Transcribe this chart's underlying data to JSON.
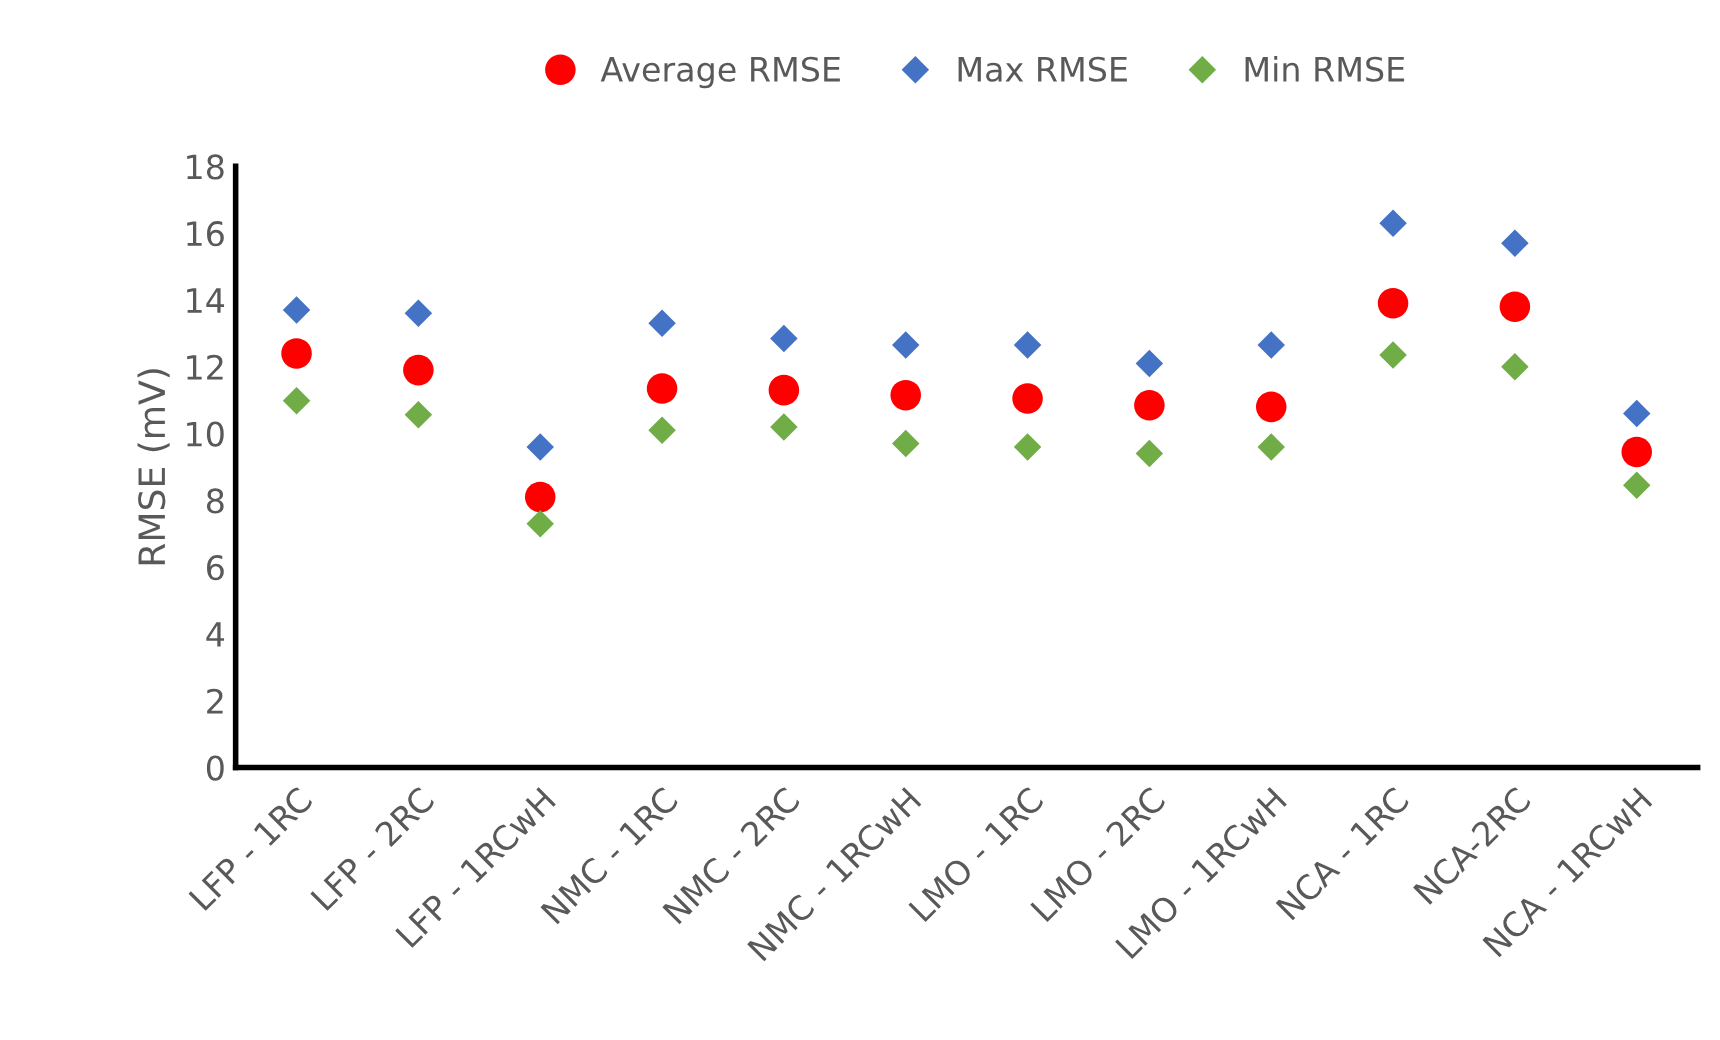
{
  "chart_data": {
    "type": "scatter",
    "ylabel": "RMSE (mV)",
    "categories": [
      "LFP - 1RC",
      "LFP - 2RC",
      "LFP - 1RCwH",
      "NMC - 1RC",
      "NMC - 2RC",
      "NMC - 1RCwH",
      "LMO - 1RC",
      "LMO - 2RC",
      "LMO - 1RCwH",
      "NCA - 1RC",
      "NCA-2RC",
      "NCA - 1RCwH"
    ],
    "series": [
      {
        "name": "Average RMSE",
        "color": "#ff0000",
        "marker": "circle",
        "values": [
          12.4,
          11.9,
          8.1,
          11.35,
          11.3,
          11.15,
          11.05,
          10.85,
          10.8,
          13.9,
          13.8,
          9.45
        ]
      },
      {
        "name": "Max RMSE",
        "color": "#4472c4",
        "marker": "diamond",
        "values": [
          13.7,
          13.6,
          9.6,
          13.3,
          12.85,
          12.65,
          12.65,
          12.1,
          12.65,
          16.3,
          15.7,
          10.6
        ]
      },
      {
        "name": "Min RMSE",
        "color": "#70ad47",
        "marker": "diamond",
        "values": [
          10.98,
          10.56,
          7.3,
          10.1,
          10.2,
          9.7,
          9.6,
          9.4,
          9.6,
          12.35,
          12.0,
          8.45
        ]
      }
    ],
    "ylim": [
      0,
      18
    ],
    "yticks": [
      0,
      2,
      4,
      6,
      8,
      10,
      12,
      14,
      16,
      18
    ],
    "grid": false,
    "legend": "top"
  }
}
